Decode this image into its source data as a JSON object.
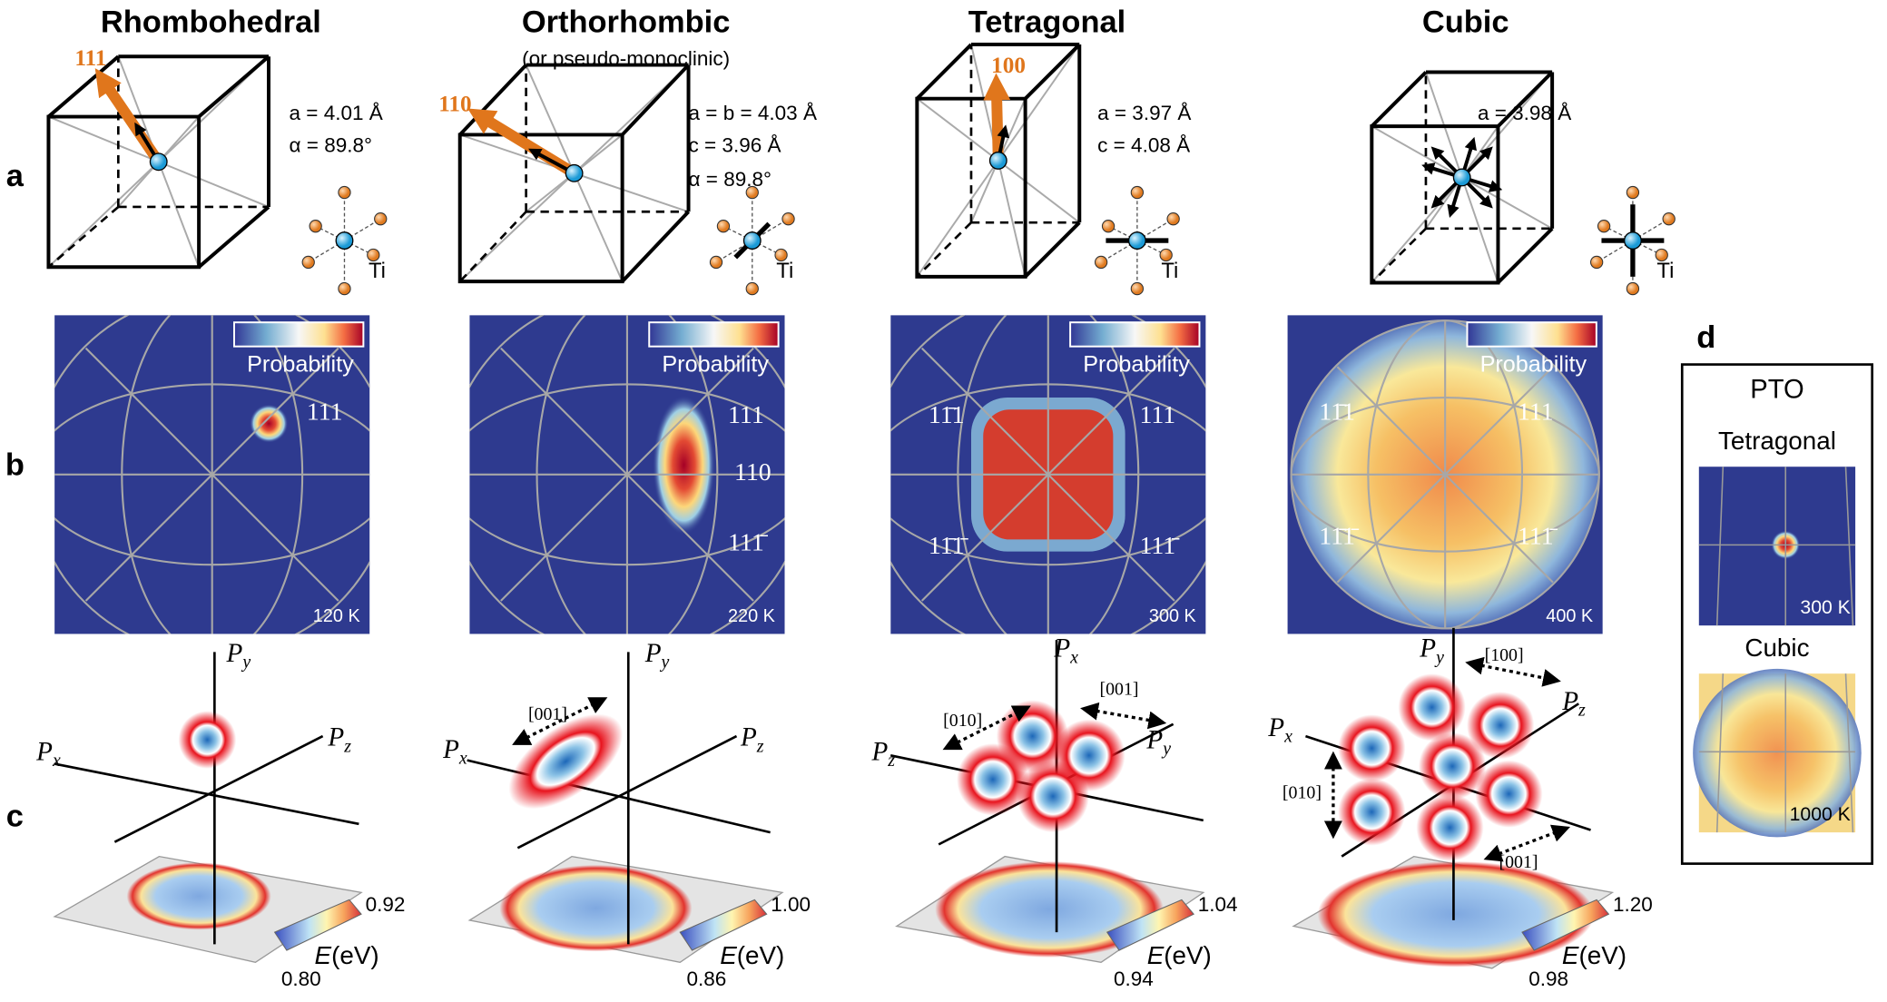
{
  "panel_labels": [
    "a",
    "b",
    "c",
    "d"
  ],
  "columns": [
    {
      "title": "Rhombohedral",
      "direction": "111",
      "lattice": [
        "a = 4.01 Å",
        "α = 89.8°"
      ],
      "atom": "Ti",
      "map": {
        "legend": "Probability",
        "temperature": "120 K",
        "labels": [
          "111"
        ]
      },
      "polarization": {
        "axes": [
          {
            "symbol": "P",
            "sub": "y"
          },
          {
            "symbol": "P",
            "sub": "x"
          },
          {
            "symbol": "P",
            "sub": "z"
          }
        ]
      },
      "energy": {
        "symbol": "E",
        "unit": "(eV)",
        "max": "0.92",
        "min": "0.80"
      }
    },
    {
      "title": "Orthorhombic",
      "subtitle": "(or pseudo-monoclinic)",
      "direction": "110",
      "lattice": [
        "a = b = 4.03 Å",
        "c = 3.96 Å",
        "α = 89.8°"
      ],
      "atom": "Ti",
      "map": {
        "legend": "Probability",
        "temperature": "220 K",
        "labels": [
          "111",
          "110",
          "111̄"
        ]
      },
      "polarization": {
        "axes": [
          {
            "symbol": "P",
            "sub": "y"
          },
          {
            "symbol": "P",
            "sub": "x"
          },
          {
            "symbol": "P",
            "sub": "z"
          }
        ],
        "directions": [
          "[001]"
        ]
      },
      "energy": {
        "symbol": "E",
        "unit": "(eV)",
        "max": "1.00",
        "min": "0.86"
      }
    },
    {
      "title": "Tetragonal",
      "direction": "100",
      "lattice": [
        "a = 3.97 Å",
        "c = 4.08 Å"
      ],
      "atom": "Ti",
      "map": {
        "legend": "Probability",
        "temperature": "300 K",
        "labels": [
          "11̄1",
          "111",
          "11̄1̄",
          "111̄"
        ]
      },
      "polarization": {
        "axes": [
          {
            "symbol": "P",
            "sub": "x"
          },
          {
            "symbol": "P",
            "sub": "z"
          },
          {
            "symbol": "P",
            "sub": "y"
          }
        ],
        "directions": [
          "[010]",
          "[001]"
        ]
      },
      "energy": {
        "symbol": "E",
        "unit": "(eV)",
        "max": "1.04",
        "min": "0.94"
      }
    },
    {
      "title": "Cubic",
      "lattice": [
        "a = 3.98 Å"
      ],
      "atom": "Ti",
      "map": {
        "legend": "Probability",
        "temperature": "400 K",
        "labels": [
          "11̄1",
          "111",
          "11̄1̄",
          "111̄"
        ]
      },
      "polarization": {
        "axes": [
          {
            "symbol": "P",
            "sub": "y"
          },
          {
            "symbol": "P",
            "sub": "z"
          },
          {
            "symbol": "P",
            "sub": "x"
          }
        ],
        "directions": [
          "[100]",
          "[010]",
          "[001]"
        ]
      },
      "energy": {
        "symbol": "E",
        "unit": "(eV)",
        "max": "1.20",
        "min": "0.98"
      }
    }
  ],
  "panel_d": {
    "title": "PTO",
    "maps": [
      {
        "phase": "Tetragonal",
        "temperature": "300 K"
      },
      {
        "phase": "Cubic",
        "temperature": "1000 K"
      }
    ]
  }
}
